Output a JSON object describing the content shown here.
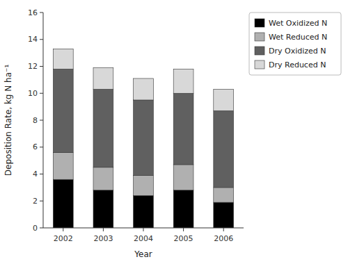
{
  "chart_data": {
    "type": "bar",
    "stacked": true,
    "xlabel": "Year",
    "ylabel": "Deposition Rate, kg N ha⁻¹",
    "categories": [
      "2002",
      "2003",
      "2004",
      "2005",
      "2006"
    ],
    "series": [
      {
        "name": "Wet Oxidized N",
        "color": "#000000",
        "values": [
          3.6,
          2.8,
          2.4,
          2.8,
          1.9
        ]
      },
      {
        "name": "Wet Reduced N",
        "color": "#b0b0b0",
        "values": [
          2.0,
          1.7,
          1.5,
          1.9,
          1.1
        ]
      },
      {
        "name": "Dry Oxidized N",
        "color": "#606060",
        "values": [
          6.2,
          5.8,
          5.6,
          5.3,
          5.7
        ]
      },
      {
        "name": "Dry Reduced N",
        "color": "#d8d8d8",
        "values": [
          1.5,
          1.6,
          1.6,
          1.8,
          1.6
        ]
      }
    ],
    "ylim": [
      0,
      16
    ],
    "yticks": [
      0,
      2,
      4,
      6,
      8,
      10,
      12,
      14,
      16
    ],
    "grid": false,
    "legend": "upper right"
  }
}
